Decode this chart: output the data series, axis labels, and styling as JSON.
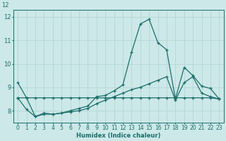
{
  "xlabel": "Humidex (Indice chaleur)",
  "ylabel": "",
  "bg_color": "#cce8e8",
  "grid_color": "#b8d8d8",
  "line_color": "#1a6e6a",
  "xlim": [
    -0.5,
    23.5
  ],
  "ylim": [
    7.5,
    12.3
  ],
  "xticks": [
    0,
    1,
    2,
    3,
    4,
    5,
    6,
    7,
    8,
    9,
    10,
    11,
    12,
    13,
    14,
    15,
    16,
    17,
    18,
    19,
    20,
    21,
    22,
    23
  ],
  "yticks": [
    8,
    9,
    10,
    11,
    12
  ],
  "ytick_labels": [
    "8",
    "9",
    "10",
    "11",
    "12"
  ],
  "line1_x": [
    0,
    1,
    2,
    3,
    4,
    5,
    6,
    7,
    8,
    9,
    10,
    11,
    12,
    13,
    14,
    15,
    16,
    17,
    18,
    19,
    20,
    21,
    22,
    23
  ],
  "line1_y": [
    9.2,
    8.55,
    7.75,
    7.9,
    7.85,
    7.9,
    8.0,
    8.1,
    8.2,
    8.6,
    8.65,
    8.85,
    9.1,
    10.5,
    11.7,
    11.9,
    10.9,
    10.6,
    8.5,
    9.85,
    9.5,
    9.05,
    8.95,
    8.5
  ],
  "line2_x": [
    0,
    1,
    2,
    3,
    4,
    5,
    6,
    7,
    8,
    9,
    10,
    11,
    12,
    13,
    14,
    15,
    16,
    17,
    18,
    19,
    20,
    21,
    22,
    23
  ],
  "line2_y": [
    8.55,
    8.55,
    8.55,
    8.55,
    8.55,
    8.55,
    8.55,
    8.55,
    8.55,
    8.55,
    8.55,
    8.55,
    8.55,
    8.55,
    8.55,
    8.55,
    8.55,
    8.55,
    8.55,
    8.55,
    8.55,
    8.55,
    8.55,
    8.5
  ],
  "line3_x": [
    0,
    1,
    2,
    3,
    4,
    5,
    6,
    7,
    8,
    9,
    10,
    11,
    12,
    13,
    14,
    15,
    16,
    17,
    18,
    19,
    20,
    21,
    22,
    23
  ],
  "line3_y": [
    8.55,
    8.05,
    7.75,
    7.85,
    7.85,
    7.9,
    7.95,
    8.0,
    8.1,
    8.3,
    8.45,
    8.6,
    8.75,
    8.9,
    9.0,
    9.15,
    9.3,
    9.45,
    8.45,
    9.2,
    9.45,
    8.75,
    8.6,
    8.5
  ],
  "xlabel_fontsize": 6.0,
  "tick_fontsize": 5.5,
  "linewidth": 0.9,
  "marker_size": 3.0
}
